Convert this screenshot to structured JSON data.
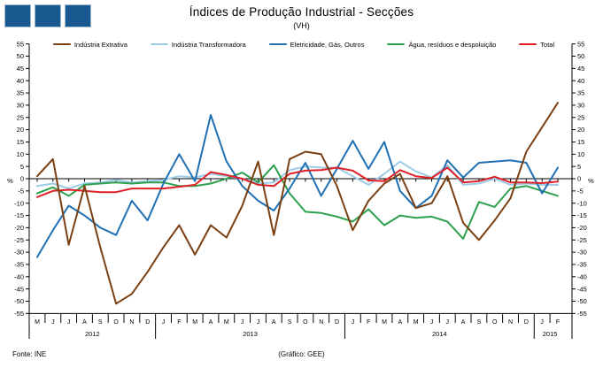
{
  "header": {
    "title": "Índices de Produção Industrial - Secções",
    "subtitle": "(VH)"
  },
  "axis": {
    "unit_left": "%",
    "unit_right": "%"
  },
  "footer": {
    "source": "Fonte: INE",
    "credit": "(Gráfico: GEE)"
  },
  "logo": {
    "square_color": "#19588F",
    "square_count": 3
  },
  "chart_data": {
    "type": "line",
    "title": "Índices de Produção Industrial - Secções",
    "subtitle": "(VH)",
    "ylabel_left": "%",
    "ylabel_right": "%",
    "ylim": [
      -55,
      55
    ],
    "ytick_step": 5,
    "grid": false,
    "legend_position": "top",
    "categories": [
      "M",
      "J",
      "J",
      "A",
      "S",
      "O",
      "N",
      "D",
      "J",
      "F",
      "M",
      "A",
      "M",
      "J",
      "J",
      "A",
      "S",
      "O",
      "N",
      "D",
      "J",
      "F",
      "M",
      "A",
      "M",
      "J",
      "J",
      "A",
      "S",
      "O",
      "N",
      "D",
      "J",
      "F"
    ],
    "years": [
      {
        "label": "2012",
        "start": 0,
        "count": 8
      },
      {
        "label": "2013",
        "start": 8,
        "count": 12
      },
      {
        "label": "2014",
        "start": 20,
        "count": 12
      },
      {
        "label": "2015",
        "start": 32,
        "count": 2
      }
    ],
    "series": [
      {
        "name": "Indústria Extrativa",
        "color": "#7B3F11",
        "values": [
          1,
          8,
          -27,
          -3,
          -28,
          -51,
          -47,
          -38,
          -28,
          -19,
          -31,
          -19,
          -24,
          -11,
          7,
          -23,
          8,
          11,
          10,
          -3,
          -21,
          -9,
          -2,
          2,
          -12,
          -10,
          1,
          -18,
          -25,
          -17,
          -8,
          11,
          21,
          31
        ]
      },
      {
        "name": "Indústria Transformadora",
        "color": "#9DCBE8",
        "values": [
          -3,
          -2,
          -4,
          -2,
          -1.5,
          -0.5,
          -1.5,
          -1,
          -0.5,
          1,
          0.5,
          2,
          1,
          0,
          -2,
          -1.5,
          3.5,
          5,
          4.5,
          4.5,
          1,
          -2.5,
          2,
          7,
          3,
          0.5,
          5.5,
          -2.5,
          -2,
          0,
          -2.5,
          -2,
          -2.5,
          -2.5
        ]
      },
      {
        "name": "Eletricidade, Gás, Outros",
        "color": "#2070B4",
        "values": [
          -32,
          -21,
          -11,
          -15,
          -20,
          -23,
          -9,
          -17,
          -2,
          10,
          -1,
          26,
          7,
          -3,
          -9,
          -13,
          -4,
          6.5,
          -7,
          4,
          15.5,
          4,
          15,
          -5,
          -12,
          -7,
          7.5,
          0.5,
          6.5,
          7,
          7.5,
          6.5,
          -6,
          4.5
        ]
      },
      {
        "name": "Água, resíduos e despoluição",
        "color": "#2CA04C",
        "values": [
          -6,
          -3.5,
          -7,
          -2.5,
          -2,
          -1.5,
          -2,
          -1.5,
          -1.5,
          -3,
          -3,
          -2,
          0,
          2.5,
          -1.5,
          5.5,
          -6,
          -13.5,
          -14,
          -15.5,
          -17.5,
          -12.5,
          -19,
          -15,
          -16,
          -15.5,
          -17.5,
          -24.5,
          -9.5,
          -11.5,
          -4,
          -3,
          -5,
          -7
        ]
      },
      {
        "name": "Total",
        "color": "#E02026",
        "values": [
          -7.5,
          -5,
          -4.5,
          -5,
          -5.5,
          -5.5,
          -4,
          -4,
          -4,
          -3.3,
          -2.5,
          2.7,
          1.5,
          0,
          -2.5,
          -3,
          2,
          3.3,
          3.5,
          4.5,
          3.3,
          -0.7,
          -1,
          3.5,
          1,
          0.3,
          4.5,
          -1.5,
          -1,
          0.8,
          -1.5,
          -1.5,
          -1.8,
          -1.2
        ]
      }
    ]
  }
}
